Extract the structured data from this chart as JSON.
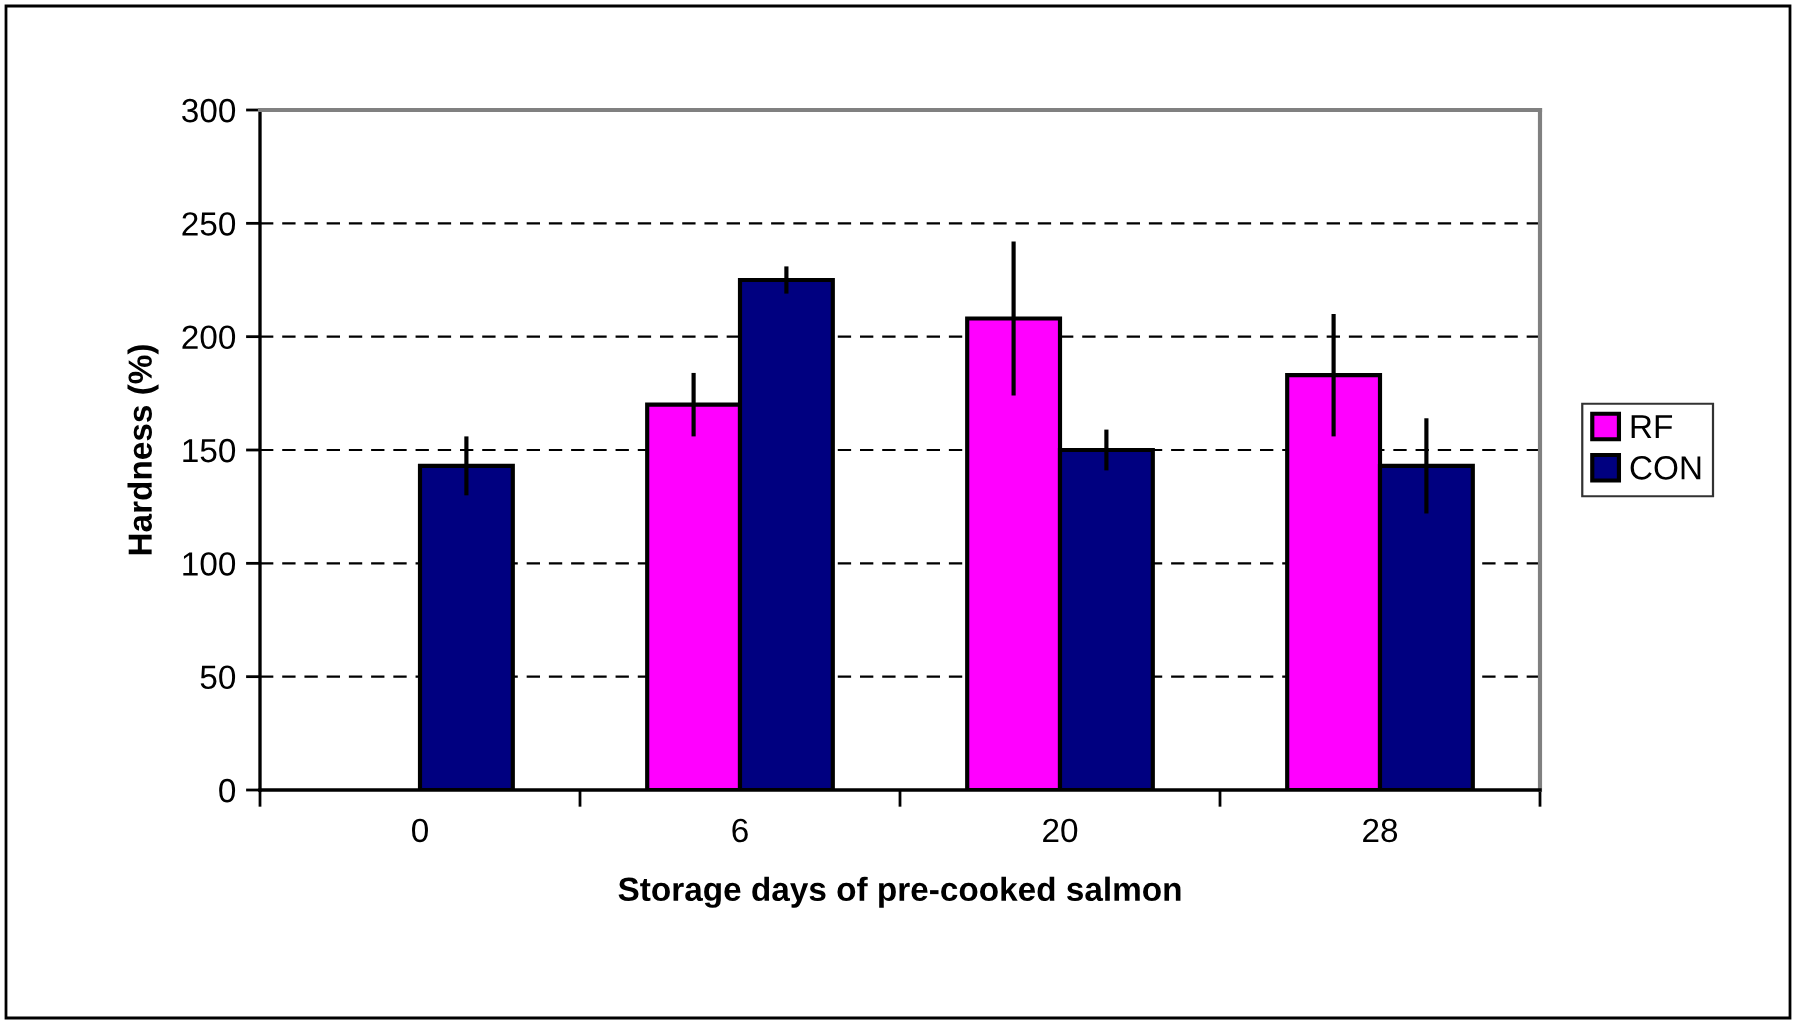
{
  "chart_data": {
    "type": "bar",
    "xlabel": "Storage days of pre-cooked salmon",
    "ylabel": "Hardness (%)",
    "categories": [
      "0",
      "6",
      "20",
      "28"
    ],
    "series": [
      {
        "name": "RF",
        "color": "#ff00ff",
        "values": [
          null,
          170,
          208,
          183
        ],
        "errors": [
          null,
          14,
          34,
          27
        ]
      },
      {
        "name": "CON",
        "color": "#000080",
        "values": [
          143,
          225,
          150,
          143
        ],
        "errors": [
          13,
          6,
          9,
          21
        ]
      }
    ],
    "ylim": [
      0,
      300
    ],
    "yticks": [
      0,
      50,
      100,
      150,
      200,
      250,
      300
    ],
    "grid": "y",
    "legend": "right"
  }
}
